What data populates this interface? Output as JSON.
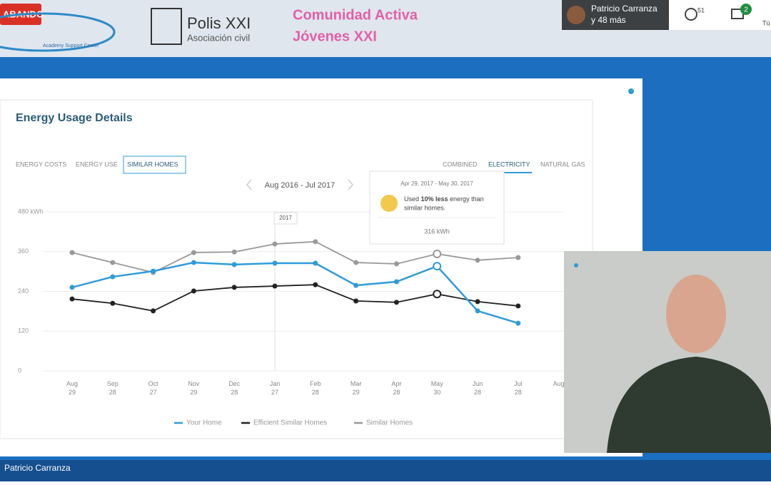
{
  "recording": "ABANDO",
  "logos": {
    "academy": "Academy Support Center",
    "polis": "Polis XXI",
    "polis_sub": "Asociación civil",
    "community_1": "Comunidad Activa",
    "community_2": "Jóvenes XXI"
  },
  "call": {
    "presenter": "Patricio Carranza",
    "others": "y 48 más",
    "participants": "51",
    "messages": "2",
    "you": "Tú",
    "speaker_name": "Patricio Carranza"
  },
  "card": {
    "title": "Energy Usage Details",
    "tabs_left": [
      "ENERGY COSTS",
      "ENERGY USE",
      "SIMILAR HOMES"
    ],
    "tabs_right": [
      "COMBINED",
      "ELECTRICITY",
      "NATURAL GAS"
    ],
    "period": "Aug 2016 - Jul 2017",
    "year_marker": "2017",
    "tooltip": {
      "date": "Apr 29, 2017 - May 30, 2017",
      "text_1": "Used ",
      "highlight": "10% less",
      "text_2": " energy than",
      "text_3": "similar homes.",
      "value": "316 kWh"
    }
  },
  "chart_data": {
    "type": "line",
    "categories": [
      "Aug 29",
      "Sep 28",
      "Oct 27",
      "Nov 29",
      "Dec 28",
      "Jan 27",
      "Feb 28",
      "Mar 29",
      "Apr 28",
      "May 30",
      "Jun 28",
      "Jul 28",
      "Aug"
    ],
    "series": [
      {
        "name": "Your Home",
        "color": "#2f9bd9",
        "values": [
          252,
          284,
          301,
          327,
          321,
          325,
          325,
          258,
          269,
          316,
          181,
          144,
          null
        ]
      },
      {
        "name": "Efficient Similar Homes",
        "color": "#222222",
        "values": [
          217,
          204,
          181,
          241,
          252,
          256,
          260,
          211,
          207,
          232,
          209,
          196,
          null
        ]
      },
      {
        "name": "Similar Homes",
        "color": "#999999",
        "values": [
          357,
          327,
          297,
          357,
          359,
          383,
          390,
          327,
          323,
          353,
          334,
          342,
          null
        ]
      }
    ],
    "ylim": [
      0,
      480
    ],
    "yticks": [
      0,
      120,
      240,
      360,
      {
        "value": 480,
        "label": "480 kWh"
      }
    ],
    "grid": true
  }
}
